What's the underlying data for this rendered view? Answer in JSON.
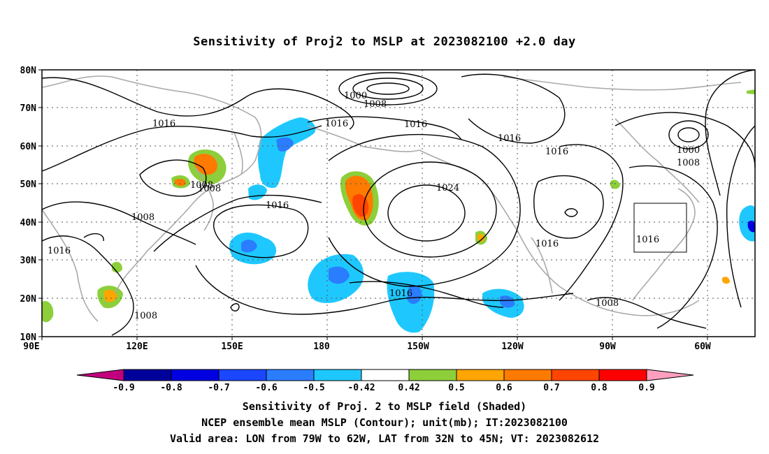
{
  "title": "Sensitivity of Proj2 to MSLP at 2023082100 +2.0 day",
  "lat_labels": [
    "80N",
    "70N",
    "60N",
    "50N",
    "40N",
    "30N",
    "20N",
    "10N"
  ],
  "lon_labels": [
    "90E",
    "120E",
    "150E",
    "180",
    "150W",
    "120W",
    "90W",
    "60W"
  ],
  "contour_labels": [
    {
      "id": "c1000a",
      "text": "1000"
    },
    {
      "id": "c1008a",
      "text": "1008"
    },
    {
      "id": "c1016a",
      "text": "1016"
    },
    {
      "id": "c1016b",
      "text": "1016"
    },
    {
      "id": "c1016c",
      "text": "1016"
    },
    {
      "id": "c1016d",
      "text": "1016"
    },
    {
      "id": "c1016e",
      "text": "1016"
    },
    {
      "id": "c1008b",
      "text": "1008"
    },
    {
      "id": "c1008c",
      "text": "1008"
    },
    {
      "id": "c1016f",
      "text": "1016"
    },
    {
      "id": "c1024",
      "text": "1024"
    },
    {
      "id": "c1016g",
      "text": "1016"
    },
    {
      "id": "c1016h",
      "text": "1016"
    },
    {
      "id": "c1016i",
      "text": "1016"
    },
    {
      "id": "c1008d",
      "text": "1008"
    },
    {
      "id": "c1008e",
      "text": "1008"
    },
    {
      "id": "c1000b",
      "text": "1000"
    },
    {
      "id": "c1008f",
      "text": "1008"
    },
    {
      "id": "c1016j",
      "text": "1016"
    },
    {
      "id": "c1008g",
      "text": "1008"
    }
  ],
  "colorbar": {
    "colors": [
      "#c2007f",
      "#00009a",
      "#0000e0",
      "#1a47ff",
      "#2a7dff",
      "#1ec8ff",
      "#ffffff",
      "#8ccf3a",
      "#ffa500",
      "#ff7a00",
      "#ff4500",
      "#ff0000",
      "#ff9fc0"
    ],
    "labels": [
      "-0.9",
      "-0.8",
      "-0.7",
      "-0.6",
      "-0.5",
      "-0.42",
      "0.42",
      "0.5",
      "0.6",
      "0.7",
      "0.8",
      "0.9"
    ]
  },
  "footer": {
    "line1": "Sensitivity of Proj. 2 to MSLP field (Shaded)",
    "line2": "NCEP ensemble mean MSLP (Contour); unit(mb); IT:2023082100",
    "line3": "Valid area: LON from 79W to 62W, LAT from 32N to 45N; VT: 2023082612"
  }
}
